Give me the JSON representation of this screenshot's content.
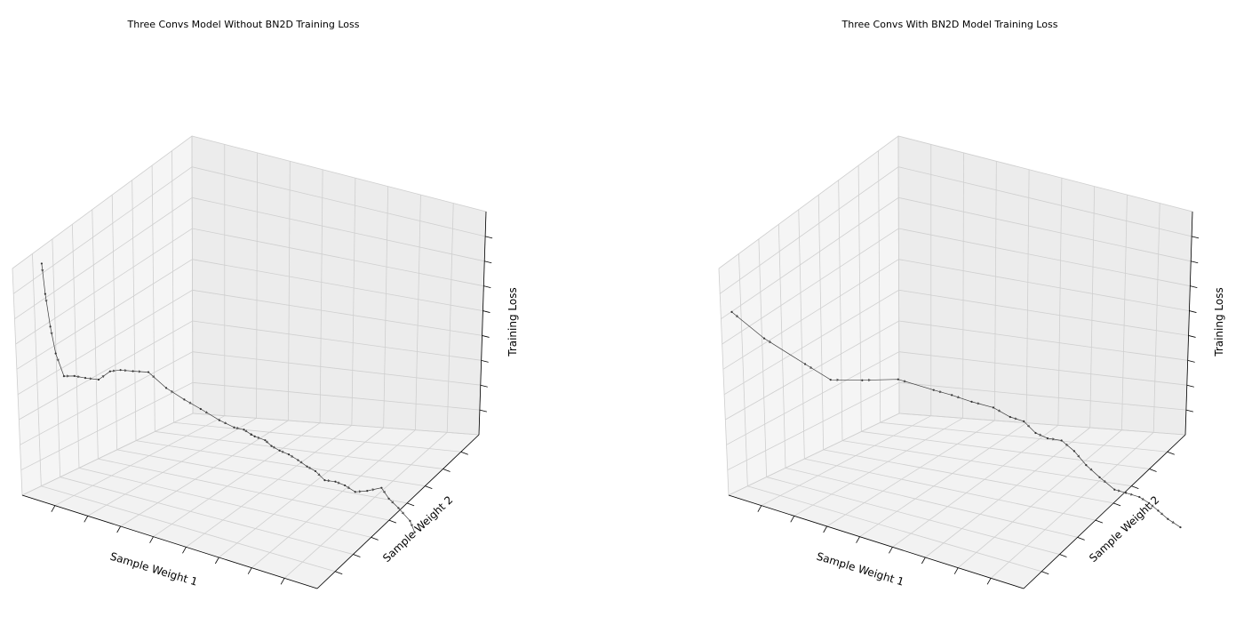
{
  "chart_data": [
    {
      "type": "3d-line",
      "title": "Three Convs Model Without BN2D Training Loss",
      "xlabel": "Sample Weight 1",
      "ylabel": "Sample Weight 2",
      "zlabel": "Training Loss",
      "grid": true,
      "tick_labels_visible": false,
      "series": [
        {
          "x": [
            -0.95,
            -0.941,
            -0.925,
            -0.907,
            -0.869,
            -0.815,
            -0.756,
            -0.682,
            -0.626,
            -0.589,
            -0.528,
            -0.46,
            -0.375,
            -0.29,
            -0.217,
            -0.121,
            -0.06,
            -0.016,
            0.007,
            0.021,
            0.057,
            0.088,
            0.113,
            0.146,
            0.183,
            0.226,
            0.259,
            0.304,
            0.357,
            0.405,
            0.475,
            0.548,
            0.628,
            0.682,
            0.737,
            0.808,
            0.856
          ],
          "y": [
            -0.76,
            -0.748,
            -0.731,
            -0.711,
            -0.69,
            -0.661,
            -0.636,
            -0.609,
            -0.569,
            -0.512,
            -0.473,
            -0.411,
            -0.356,
            -0.296,
            -0.234,
            -0.185,
            -0.12,
            -0.083,
            -0.039,
            -0.023,
            0.035,
            0.054,
            0.104,
            0.153,
            0.196,
            0.226,
            0.266,
            0.296,
            0.329,
            0.356,
            0.356,
            0.371,
            0.401,
            0.392,
            0.409,
            0.42,
            0.39
          ],
          "z": [
            0.926,
            0.662,
            0.38,
            0.147,
            -0.041,
            -0.031,
            -0.036,
            -0.033,
            0.041,
            0.041,
            0.037,
            0.028,
            -0.094,
            -0.182,
            -0.257,
            -0.331,
            -0.392,
            -0.408,
            -0.455,
            -0.471,
            -0.51,
            -0.551,
            -0.596,
            -0.632,
            -0.678,
            -0.722,
            -0.76,
            -0.824,
            -0.827,
            -0.847,
            -0.872,
            -0.843,
            -0.801,
            -0.861,
            -0.919,
            -0.995,
            -1.055
          ]
        }
      ]
    },
    {
      "type": "3d-line",
      "title": "Three Convs With BN2D Model Training Loss",
      "xlabel": "Sample Weight 1",
      "ylabel": "Sample Weight 2",
      "zlabel": "Training Loss",
      "grid": true,
      "tick_labels_visible": false,
      "series": [
        {
          "x": [
            -0.95,
            -0.865,
            -0.75,
            -0.688,
            -0.543,
            -0.377,
            -0.15,
            -0.048,
            0.045,
            0.146,
            0.215,
            0.263,
            0.32,
            0.379,
            0.426,
            0.487,
            0.539,
            0.602,
            0.663,
            0.702,
            0.765,
            0.809,
            0.845,
            0.903,
            0.949
          ],
          "y": [
            -0.959,
            -0.75,
            -0.491,
            -0.311,
            -0.194,
            -0.062,
            -0.039,
            -0.004,
            0.065,
            0.142,
            0.216,
            0.291,
            0.328,
            0.365,
            0.446,
            0.487,
            0.535,
            0.582,
            0.65,
            0.716,
            0.764,
            0.8,
            0.845,
            0.858,
            0.925
          ],
          "z": [
            0.615,
            0.312,
            0.018,
            -0.166,
            -0.164,
            -0.149,
            -0.159,
            -0.176,
            -0.222,
            -0.261,
            -0.338,
            -0.383,
            -0.466,
            -0.499,
            -0.528,
            -0.601,
            -0.705,
            -0.79,
            -0.883,
            -0.914,
            -0.938,
            -0.978,
            -1.035,
            -1.08,
            -1.144
          ]
        }
      ]
    }
  ]
}
